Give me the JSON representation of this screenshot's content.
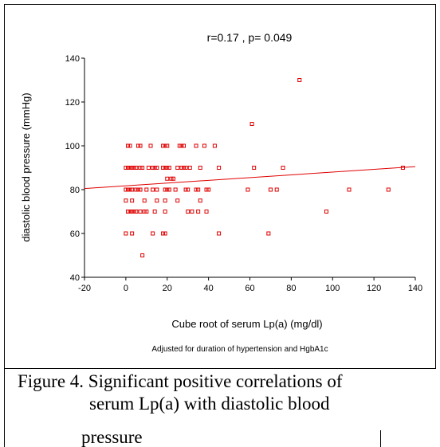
{
  "chart_data": {
    "type": "scatter",
    "title": "r=0.17 , p= 0.049",
    "x_label": "Cube root of serum Lp(a)        (mg/dl)",
    "y_label": "diastolic blood pressure   (mmHg)",
    "note": "Adjusted for duration of hypertension and HgbA1c",
    "xlim": [
      -20,
      140
    ],
    "ylim": [
      40,
      140
    ],
    "xticks": [
      -20,
      0,
      20,
      40,
      60,
      80,
      100,
      120,
      140
    ],
    "yticks": [
      40,
      60,
      80,
      100,
      120,
      140
    ],
    "color": "#e00000",
    "x": [
      1,
      2,
      6,
      7,
      12,
      12,
      18,
      19,
      20,
      26,
      27,
      28,
      34,
      38,
      43,
      84,
      61,
      0,
      1,
      2,
      3,
      4,
      5,
      7,
      8,
      11,
      13,
      14,
      15,
      18,
      19,
      20,
      21,
      25,
      27,
      28,
      29,
      31,
      36,
      45,
      62,
      76,
      134,
      20,
      22,
      23,
      0,
      1,
      2,
      3,
      5,
      6,
      7,
      10,
      13,
      15,
      19,
      20,
      21,
      24,
      29,
      30,
      34,
      35,
      39,
      40,
      59,
      70,
      73,
      108,
      127,
      0,
      3,
      9,
      15,
      19,
      25,
      36,
      1,
      2,
      3,
      4,
      5,
      7,
      9,
      10,
      14,
      19,
      30,
      32,
      35,
      39,
      97,
      0,
      3,
      13,
      18,
      19,
      45,
      69,
      8
    ],
    "values": [
      100,
      100,
      100,
      100,
      100,
      100,
      100,
      100,
      100,
      100,
      100,
      100,
      100,
      100,
      100,
      130,
      110,
      90,
      90,
      90,
      90,
      90,
      90,
      90,
      90,
      90,
      90,
      90,
      90,
      90,
      90,
      90,
      90,
      90,
      90,
      90,
      90,
      90,
      90,
      90,
      90,
      90,
      90,
      85,
      85,
      85,
      80,
      80,
      80,
      80,
      80,
      80,
      80,
      80,
      80,
      80,
      80,
      80,
      80,
      80,
      80,
      80,
      80,
      80,
      80,
      80,
      80,
      80,
      80,
      80,
      80,
      75,
      75,
      75,
      75,
      75,
      75,
      75,
      70,
      70,
      70,
      70,
      70,
      70,
      70,
      70,
      70,
      70,
      70,
      70,
      70,
      70,
      70,
      60,
      60,
      60,
      60,
      60,
      60,
      60,
      50
    ],
    "fit_line": {
      "x": [
        -20,
        140
      ],
      "y": [
        80.5,
        90.5
      ]
    }
  },
  "caption": [
    "Figure 4. Significant positive correlations of",
    "serum Lp(a) with diastolic blood",
    "pressure"
  ]
}
